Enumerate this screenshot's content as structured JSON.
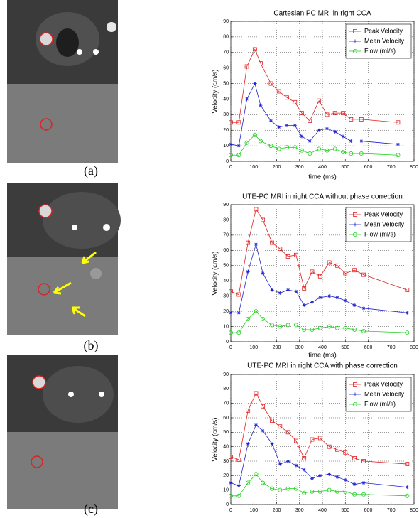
{
  "chart_data": [
    {
      "type": "line",
      "panel_label": "(a)",
      "title": "Cartesian PC MRI in right CCA",
      "xlabel": "time (ms)",
      "ylabel": "Velocity (cm/s)",
      "x": [
        0,
        35,
        70,
        105,
        130,
        175,
        210,
        245,
        280,
        310,
        345,
        385,
        420,
        455,
        490,
        525,
        570,
        730
      ],
      "series": [
        {
          "name": "Peak Velocity",
          "color": "#e02020",
          "marker": "square",
          "values": [
            25,
            25,
            61,
            72,
            63,
            50,
            45,
            41,
            38,
            31,
            26,
            39,
            30,
            31,
            31,
            27,
            27,
            25
          ]
        },
        {
          "name": "Mean Velocity",
          "color": "#2020d0",
          "marker": "star",
          "values": [
            11,
            10,
            40,
            50,
            36,
            26,
            22,
            23,
            23,
            16,
            13,
            20,
            21,
            19,
            16,
            13,
            13,
            11
          ]
        },
        {
          "name": "Flow (ml/s)",
          "color": "#20d020",
          "marker": "circle",
          "values": [
            4,
            4,
            12,
            17,
            13,
            10,
            8,
            9,
            9,
            7,
            5,
            8,
            7,
            8,
            6,
            5,
            5,
            4
          ]
        }
      ],
      "xlim": [
        0,
        800
      ],
      "ylim": [
        0,
        90
      ],
      "xticks": [
        0,
        100,
        200,
        300,
        400,
        500,
        600,
        700,
        800
      ],
      "yticks": [
        0,
        10,
        20,
        30,
        40,
        50,
        60,
        70,
        80,
        90
      ],
      "grid": true,
      "legend": "upper right"
    },
    {
      "type": "line",
      "panel_label": "(b)",
      "title": "UTE-PC MRI in right CCA without phase correction",
      "xlabel": "time (ms)",
      "ylabel": "Velocity (cm/s)",
      "x": [
        0,
        35,
        75,
        110,
        140,
        180,
        215,
        250,
        285,
        320,
        355,
        390,
        430,
        465,
        500,
        540,
        580,
        770
      ],
      "series": [
        {
          "name": "Peak Velocity",
          "color": "#e02020",
          "marker": "square",
          "values": [
            33,
            31,
            65,
            87,
            80,
            65,
            61,
            56,
            57,
            35,
            46,
            43,
            52,
            50,
            45,
            47,
            44,
            34
          ]
        },
        {
          "name": "Mean Velocity",
          "color": "#2020d0",
          "marker": "star",
          "values": [
            19,
            19,
            46,
            64,
            45,
            34,
            32,
            34,
            33,
            24,
            26,
            29,
            30,
            29,
            27,
            24,
            22,
            19
          ]
        },
        {
          "name": "Flow (ml/s)",
          "color": "#20d020",
          "marker": "circle",
          "values": [
            6,
            6,
            15,
            20,
            15,
            11,
            10,
            11,
            11,
            8,
            8,
            9,
            10,
            9,
            9,
            8,
            7,
            6
          ]
        }
      ],
      "xlim": [
        0,
        800
      ],
      "ylim": [
        0,
        90
      ],
      "xticks": [
        0,
        100,
        200,
        300,
        400,
        500,
        600,
        700,
        800
      ],
      "yticks": [
        0,
        10,
        20,
        30,
        40,
        50,
        60,
        70,
        80,
        90
      ],
      "grid": true,
      "legend": "upper right"
    },
    {
      "type": "line",
      "panel_label": "(c)",
      "title": "UTE-PC MRI in right CCA with phase correction",
      "ylabel": "Velocity (cm/s)",
      "x": [
        0,
        35,
        75,
        110,
        140,
        180,
        215,
        250,
        285,
        320,
        355,
        390,
        430,
        465,
        500,
        540,
        580,
        770
      ],
      "series": [
        {
          "name": "Peak Velocity",
          "color": "#e02020",
          "marker": "square",
          "values": [
            33,
            31,
            65,
            77,
            68,
            58,
            54,
            50,
            44,
            32,
            45,
            46,
            40,
            38,
            36,
            32,
            30,
            28
          ]
        },
        {
          "name": "Mean Velocity",
          "color": "#2020d0",
          "marker": "star",
          "values": [
            15,
            13,
            42,
            55,
            51,
            42,
            28,
            30,
            27,
            24,
            18,
            20,
            21,
            19,
            17,
            14,
            15,
            12
          ]
        },
        {
          "name": "Flow (ml/s)",
          "color": "#20d020",
          "marker": "circle",
          "values": [
            6,
            6,
            15,
            21,
            15,
            11,
            10,
            11,
            11,
            8,
            9,
            9,
            10,
            9,
            9,
            7,
            7,
            6
          ]
        }
      ],
      "xlim": [
        0,
        800
      ],
      "ylim": [
        0,
        90
      ],
      "xticks": [
        0,
        100,
        200,
        300,
        400,
        500,
        600,
        700,
        800
      ],
      "yticks": [
        0,
        10,
        20,
        30,
        40,
        50,
        60,
        70,
        80,
        90
      ],
      "grid": true,
      "legend": "upper right"
    }
  ]
}
